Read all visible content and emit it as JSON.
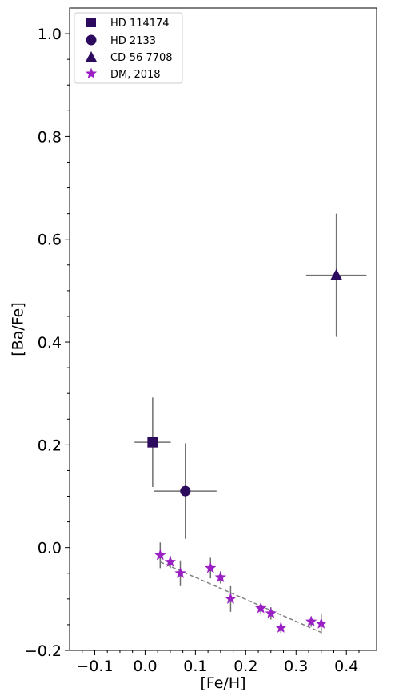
{
  "chart_data": {
    "type": "scatter",
    "xlabel": "[Fe/H]",
    "ylabel": "[Ba/Fe]",
    "xlim": [
      -0.15,
      0.46
    ],
    "ylim": [
      -0.2,
      1.05
    ],
    "xticks": [
      -0.1,
      0.0,
      0.1,
      0.2,
      0.3,
      0.4
    ],
    "xtick_labels": [
      "−0.1",
      "0.0",
      "0.1",
      "0.2",
      "0.3",
      "0.4"
    ],
    "yticks": [
      -0.2,
      0.0,
      0.2,
      0.4,
      0.6,
      0.8,
      1.0
    ],
    "ytick_labels": [
      "−0.2",
      "0.0",
      "0.2",
      "0.4",
      "0.6",
      "0.8",
      "1.0"
    ],
    "grid": false,
    "legend_position": "top-left",
    "colors": {
      "stars": "#2c0b5e",
      "survey": "#9a1fc4",
      "errorbar": "#707070",
      "fit": "#808080"
    },
    "series": [
      {
        "name": "HD 114174",
        "marker": "square",
        "points": [
          {
            "x": 0.015,
            "y": 0.205,
            "xerr": 0.036,
            "yerr": 0.087
          }
        ]
      },
      {
        "name": "HD 2133",
        "marker": "circle",
        "points": [
          {
            "x": 0.08,
            "y": 0.11,
            "xerr": 0.062,
            "yerr": 0.093
          }
        ]
      },
      {
        "name": "CD-56 7708",
        "marker": "triangle",
        "points": [
          {
            "x": 0.38,
            "y": 0.53,
            "xerr": 0.06,
            "yerr": 0.12
          }
        ]
      },
      {
        "name": "DM, 2018",
        "marker": "star",
        "points": [
          {
            "x": 0.03,
            "y": -0.015,
            "yerr": 0.025
          },
          {
            "x": 0.05,
            "y": -0.028,
            "yerr": 0.012
          },
          {
            "x": 0.07,
            "y": -0.05,
            "yerr": 0.025
          },
          {
            "x": 0.13,
            "y": -0.04,
            "yerr": 0.02
          },
          {
            "x": 0.15,
            "y": -0.058,
            "yerr": 0.012
          },
          {
            "x": 0.17,
            "y": -0.1,
            "yerr": 0.025
          },
          {
            "x": 0.23,
            "y": -0.118,
            "yerr": 0.01
          },
          {
            "x": 0.25,
            "y": -0.128,
            "yerr": 0.012
          },
          {
            "x": 0.27,
            "y": -0.156,
            "yerr": 0.01
          },
          {
            "x": 0.33,
            "y": -0.144,
            "yerr": 0.01
          },
          {
            "x": 0.35,
            "y": -0.148,
            "yerr": 0.02
          }
        ]
      }
    ],
    "fit_line": {
      "style": "dashed",
      "x": [
        0.03,
        0.35
      ],
      "y": [
        -0.028,
        -0.165
      ]
    }
  }
}
